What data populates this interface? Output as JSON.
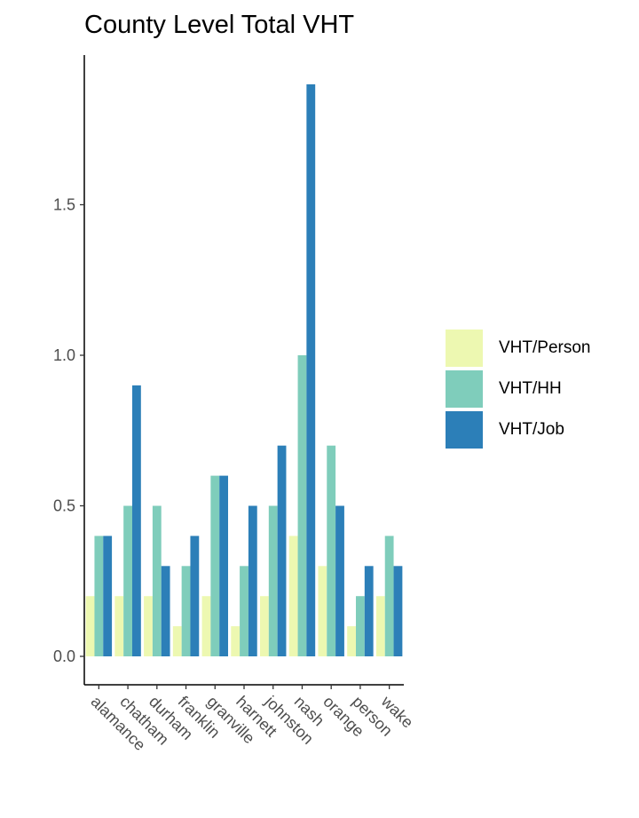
{
  "chart_data": {
    "type": "bar",
    "title": "County Level Total VHT",
    "xlabel": "",
    "ylabel": "",
    "ylim": [
      -0.1,
      2.0
    ],
    "yticks": [
      "0.0",
      "0.5",
      "1.0",
      "1.5"
    ],
    "categories": [
      "alamance",
      "chatham",
      "durham",
      "franklin",
      "granville",
      "harnett",
      "johnston",
      "nash",
      "orange",
      "person",
      "wake"
    ],
    "series": [
      {
        "name": "VHT/Person",
        "color": "#edf8b1",
        "values": [
          0.2,
          0.2,
          0.2,
          0.1,
          0.2,
          0.1,
          0.2,
          0.4,
          0.3,
          0.1,
          0.2
        ]
      },
      {
        "name": "VHT/HH",
        "color": "#7fcdbb",
        "values": [
          0.4,
          0.5,
          0.5,
          0.3,
          0.6,
          0.3,
          0.5,
          1.0,
          0.7,
          0.2,
          0.4
        ]
      },
      {
        "name": "VHT/Job",
        "color": "#2c7fb8",
        "values": [
          0.4,
          0.9,
          0.3,
          0.4,
          0.6,
          0.5,
          0.7,
          1.9,
          0.5,
          0.3,
          0.3
        ]
      }
    ],
    "grid": false,
    "legend_position": "right"
  }
}
